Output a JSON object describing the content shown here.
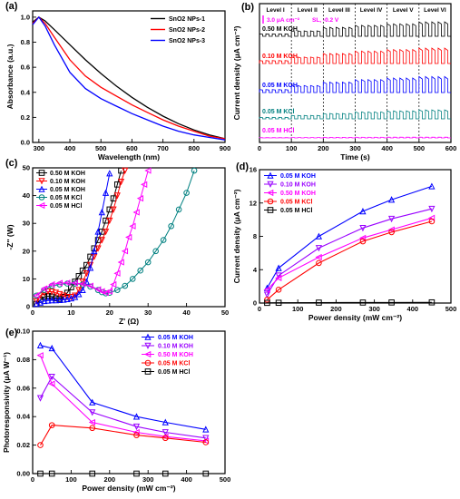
{
  "chart_data": [
    {
      "panel": "(a)",
      "type": "line",
      "xlabel": "Wavelength (nm)",
      "ylabel": "Absorbance (a.u.)",
      "xlim": [
        280,
        900
      ],
      "ylim": [
        0.0,
        1.05
      ],
      "xticks": [
        300,
        400,
        500,
        600,
        700,
        800,
        900
      ],
      "yticks": [
        0.0,
        0.2,
        0.4,
        0.6,
        0.8,
        1.0
      ],
      "xtick_labels": [
        "300",
        "400",
        "500",
        "600",
        "700",
        "800",
        "900"
      ],
      "ytick_labels": [
        "0.0",
        "0.2",
        "0.4",
        "0.6",
        "0.8",
        "1.0"
      ],
      "legend_position": "top-right",
      "series": [
        {
          "name": "SnO2 NPs-1",
          "color": "#000000",
          "x": [
            280,
            300,
            320,
            350,
            400,
            450,
            500,
            550,
            600,
            650,
            700,
            750,
            800,
            850,
            900
          ],
          "y": [
            0.96,
            1.0,
            0.97,
            0.9,
            0.78,
            0.66,
            0.55,
            0.45,
            0.36,
            0.28,
            0.21,
            0.15,
            0.1,
            0.06,
            0.03
          ]
        },
        {
          "name": "SnO2 NPs-2",
          "color": "#ff0000",
          "x": [
            280,
            300,
            320,
            350,
            400,
            450,
            500,
            550,
            600,
            650,
            700,
            750,
            800,
            850,
            900
          ],
          "y": [
            0.95,
            1.0,
            0.95,
            0.84,
            0.66,
            0.53,
            0.44,
            0.37,
            0.3,
            0.24,
            0.18,
            0.13,
            0.09,
            0.05,
            0.03
          ]
        },
        {
          "name": "SnO2 NPs-3",
          "color": "#0000ff",
          "x": [
            280,
            300,
            320,
            350,
            400,
            450,
            500,
            550,
            600,
            650,
            700,
            750,
            800,
            850,
            900
          ],
          "y": [
            0.94,
            1.0,
            0.93,
            0.78,
            0.56,
            0.43,
            0.35,
            0.29,
            0.23,
            0.18,
            0.13,
            0.09,
            0.06,
            0.04,
            0.02
          ]
        }
      ]
    },
    {
      "panel": "(b)",
      "type": "line",
      "xlabel": "Time (s)",
      "ylabel": "Current density (μA cm⁻²)",
      "xlim": [
        0,
        600
      ],
      "xticks": [
        0,
        100,
        200,
        300,
        400,
        500,
        600
      ],
      "xtick_labels": [
        "0",
        "100",
        "200",
        "300",
        "400",
        "500",
        "600"
      ],
      "level_labels": [
        "Level I",
        "Level II",
        "Level III",
        "Level IV",
        "Level V",
        "Level VI"
      ],
      "level_boundaries": [
        100,
        200,
        300,
        400,
        500
      ],
      "scale_bar": "3.0 μA cm⁻²",
      "annotation": "SL, -0.2 V",
      "pulse_period_s": 20,
      "series": [
        {
          "name": "0.50 M KOH",
          "color": "#000000",
          "amplitude_by_level": [
            0.5,
            1.1,
            1.8,
            2.2,
            2.5,
            2.9
          ]
        },
        {
          "name": "0.10 M KOH",
          "color": "#ff0000",
          "amplitude_by_level": [
            0.6,
            1.3,
            2.0,
            2.5,
            2.8,
            3.1
          ]
        },
        {
          "name": "0.05 M KOH",
          "color": "#0000ff",
          "amplitude_by_level": [
            0.6,
            1.4,
            2.1,
            2.6,
            2.9,
            3.2
          ]
        },
        {
          "name": "0.05 M KCl",
          "color": "#008080",
          "amplitude_by_level": [
            0.3,
            0.7,
            1.1,
            1.4,
            1.6,
            1.8
          ]
        },
        {
          "name": "0.05 M HCl",
          "color": "#ff00ff",
          "amplitude_by_level": [
            0.05,
            0.08,
            0.1,
            0.12,
            0.14,
            0.15
          ]
        }
      ]
    },
    {
      "panel": "(c)",
      "type": "scatter",
      "xlabel": "Z' (Ω)",
      "ylabel": "-Z'' (W)",
      "xlim": [
        0,
        50
      ],
      "ylim": [
        0,
        50
      ],
      "xticks": [
        0,
        10,
        20,
        30,
        40,
        50
      ],
      "yticks": [
        0,
        10,
        20,
        30,
        40,
        50
      ],
      "xtick_labels": [
        "0",
        "10",
        "20",
        "30",
        "40",
        "50"
      ],
      "ytick_labels": [
        "0",
        "10",
        "20",
        "30",
        "40",
        "50"
      ],
      "legend_position": "top-left",
      "series": [
        {
          "name": "0.50 M KOH",
          "color": "#000000",
          "marker": "square",
          "x": [
            1,
            2,
            3,
            4,
            5,
            6,
            7,
            8,
            9,
            10,
            11,
            12,
            13,
            14,
            15,
            16,
            17,
            18,
            19,
            20,
            21,
            22,
            23
          ],
          "y": [
            1,
            2.5,
            3.5,
            3.8,
            3.6,
            3.0,
            2.8,
            3.5,
            5,
            7,
            9,
            11,
            13,
            15,
            18,
            21,
            24,
            27,
            31,
            35,
            39,
            44,
            49
          ]
        },
        {
          "name": "0.10 M KOH",
          "color": "#ff0000",
          "marker": "triangle-down",
          "x": [
            1,
            2,
            3,
            4,
            5,
            6,
            7,
            8,
            9,
            10,
            11,
            12,
            13,
            14,
            15,
            16,
            17,
            18,
            19,
            20,
            21,
            22,
            23,
            24
          ],
          "y": [
            2,
            4,
            5,
            5.5,
            5.4,
            5.0,
            4.5,
            4.0,
            3.5,
            3.5,
            4.0,
            6,
            9,
            12,
            15,
            18,
            21,
            24,
            27,
            31,
            35,
            40,
            45,
            49
          ]
        },
        {
          "name": "0.05 M KOH",
          "color": "#0000ff",
          "marker": "triangle-up",
          "x": [
            1,
            2,
            3,
            4,
            5,
            6,
            7,
            8,
            9,
            10,
            11,
            12,
            13,
            14,
            15,
            16,
            17,
            18,
            19,
            20
          ],
          "y": [
            1,
            1.5,
            2.0,
            2.2,
            2.3,
            2.3,
            2.4,
            2.5,
            2.7,
            3.0,
            3.5,
            4.5,
            6,
            9,
            14,
            20,
            27,
            34,
            41,
            48
          ]
        },
        {
          "name": "0.05 M KCl",
          "color": "#008080",
          "marker": "circle",
          "x": [
            1,
            3,
            5,
            7,
            9,
            11,
            13,
            15,
            17,
            18,
            19,
            20,
            22,
            24,
            26,
            28,
            30,
            32,
            34,
            36,
            38,
            40,
            42
          ],
          "y": [
            4,
            6,
            7.5,
            8,
            8.3,
            8.3,
            8,
            7.2,
            6,
            5.2,
            4.8,
            5,
            6,
            7.5,
            10,
            13,
            16,
            20,
            24,
            29,
            35,
            41,
            49
          ]
        },
        {
          "name": "0.05 M HCl",
          "color": "#ff00ff",
          "marker": "triangle-left",
          "x": [
            1,
            3,
            5,
            7,
            9,
            11,
            13,
            15,
            17,
            18,
            19,
            20,
            21,
            22,
            23,
            24,
            25,
            26,
            27,
            28,
            29,
            30
          ],
          "y": [
            4,
            6.5,
            8,
            8.5,
            8.6,
            8.5,
            8.2,
            7.5,
            6.2,
            5.5,
            5.0,
            5.5,
            8,
            12,
            16,
            20,
            25,
            29,
            34,
            39,
            44,
            49
          ]
        }
      ]
    },
    {
      "panel": "(d)",
      "type": "line",
      "xlabel": "Power density (mW cm⁻²)",
      "ylabel": "Current density (μA cm⁻²)",
      "xlim": [
        0,
        500
      ],
      "ylim": [
        0,
        16
      ],
      "xticks": [
        0,
        100,
        200,
        300,
        400,
        500
      ],
      "yticks": [
        0,
        4,
        8,
        12,
        16
      ],
      "xtick_labels": [
        "0",
        "100",
        "200",
        "300",
        "400",
        "500"
      ],
      "ytick_labels": [
        "0",
        "4",
        "8",
        "12",
        "16"
      ],
      "legend_position": "top-left",
      "x": [
        20,
        50,
        155,
        270,
        345,
        450
      ],
      "series": [
        {
          "name": "0.05 M KOH",
          "color": "#0000ff",
          "marker": "triangle-up",
          "values": [
            1.8,
            4.2,
            8.0,
            11.0,
            12.4,
            14.0
          ]
        },
        {
          "name": "0.10 M KOH",
          "color": "#9900ff",
          "marker": "triangle-down",
          "values": [
            1.0,
            3.3,
            6.6,
            9.0,
            10.1,
            11.3
          ]
        },
        {
          "name": "0.50 M KOH",
          "color": "#ff00ff",
          "marker": "triangle-left",
          "values": [
            1.6,
            3.0,
            5.5,
            7.8,
            8.8,
            10.2
          ]
        },
        {
          "name": "0.05 M KCl",
          "color": "#ff0000",
          "marker": "circle",
          "values": [
            0.4,
            1.6,
            4.8,
            7.4,
            8.5,
            9.8
          ]
        },
        {
          "name": "0.05 M HCl",
          "color": "#000000",
          "marker": "square",
          "values": [
            0.02,
            0.03,
            0.05,
            0.06,
            0.07,
            0.08
          ]
        }
      ]
    },
    {
      "panel": "(e)",
      "type": "line",
      "xlabel": "Power density (mW cm⁻²)",
      "ylabel": "Photoresponsivity (μA W⁻¹)",
      "xlim": [
        0,
        500
      ],
      "ylim": [
        0,
        0.1
      ],
      "xticks": [
        0,
        100,
        200,
        300,
        400,
        500
      ],
      "yticks": [
        0.0,
        0.02,
        0.04,
        0.06,
        0.08,
        0.1
      ],
      "xtick_labels": [
        "0",
        "100",
        "200",
        "300",
        "400",
        "500"
      ],
      "ytick_labels": [
        "0.00",
        "0.02",
        "0.04",
        "0.06",
        "0.08",
        "0.10"
      ],
      "legend_position": "top-right",
      "x": [
        20,
        50,
        155,
        270,
        345,
        450
      ],
      "series": [
        {
          "name": "0.05 M KOH",
          "color": "#0000ff",
          "marker": "triangle-up",
          "values": [
            0.09,
            0.088,
            0.05,
            0.04,
            0.036,
            0.031
          ]
        },
        {
          "name": "0.10 M KOH",
          "color": "#9900ff",
          "marker": "triangle-down",
          "values": [
            0.053,
            0.068,
            0.043,
            0.033,
            0.029,
            0.025
          ]
        },
        {
          "name": "0.50 M KOH",
          "color": "#ff00ff",
          "marker": "triangle-left",
          "values": [
            0.083,
            0.063,
            0.036,
            0.029,
            0.026,
            0.023
          ]
        },
        {
          "name": "0.05 M KCl",
          "color": "#ff0000",
          "marker": "circle",
          "values": [
            0.02,
            0.034,
            0.032,
            0.027,
            0.025,
            0.022
          ]
        },
        {
          "name": "0.05 M HCl",
          "color": "#000000",
          "marker": "square",
          "values": [
            0.0,
            0.0,
            0.0,
            0.0,
            0.0,
            0.0
          ]
        }
      ]
    }
  ]
}
